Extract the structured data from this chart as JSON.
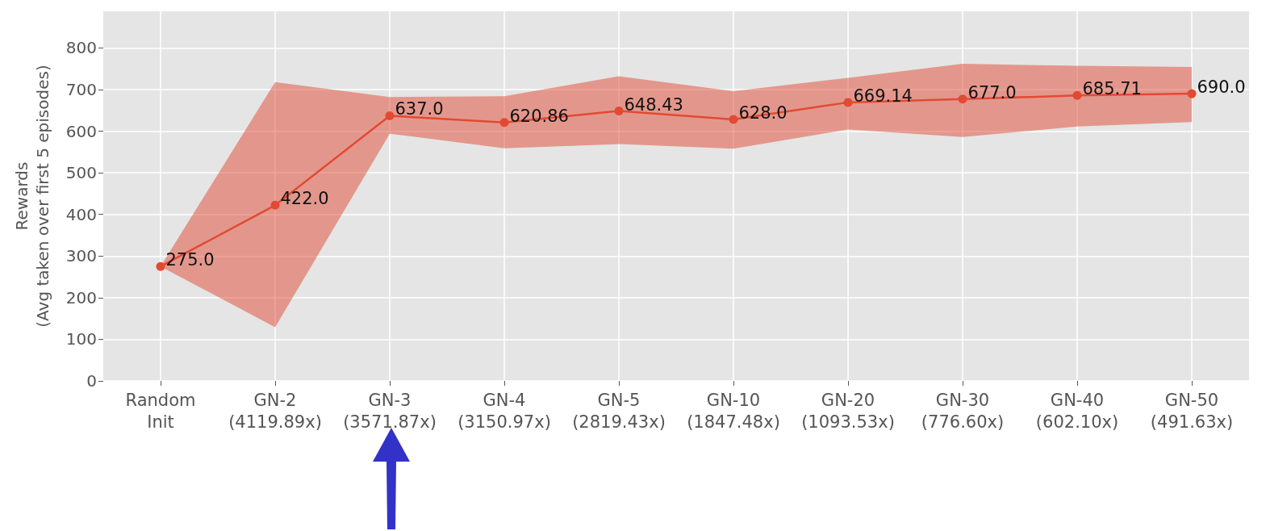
{
  "chart_data": {
    "type": "line",
    "ylabel": "Rewards\n(Avg taken over first 5 episodes)",
    "categories": [
      "Random\nInit",
      "GN-2\n(4119.89x)",
      "GN-3\n(3571.87x)",
      "GN-4\n(3150.97x)",
      "GN-5\n(2819.43x)",
      "GN-10\n(1847.48x)",
      "GN-20\n(1093.53x)",
      "GN-30\n(776.60x)",
      "GN-40\n(602.10x)",
      "GN-50\n(491.63x)"
    ],
    "series": [
      {
        "color": "#e24a33",
        "values": [
          275,
          422,
          637,
          620.86,
          648.43,
          628,
          669.14,
          677,
          685.71,
          690
        ],
        "value_labels": [
          "275.0",
          "422.0",
          "637.0",
          "620.86",
          "648.43",
          "628.0",
          "669.14",
          "677.0",
          "685.71",
          "690.0"
        ],
        "lower": [
          275,
          129,
          594,
          559,
          569,
          558,
          604,
          586,
          611,
          622
        ],
        "upper": [
          275,
          718,
          682,
          684,
          732,
          696,
          728,
          762,
          757,
          754
        ]
      }
    ],
    "ylim": [
      0,
      888
    ],
    "yticks": [
      0,
      100,
      200,
      300,
      400,
      500,
      600,
      700,
      800
    ],
    "grid": true,
    "marker": "circle",
    "line_style": "solid"
  }
}
